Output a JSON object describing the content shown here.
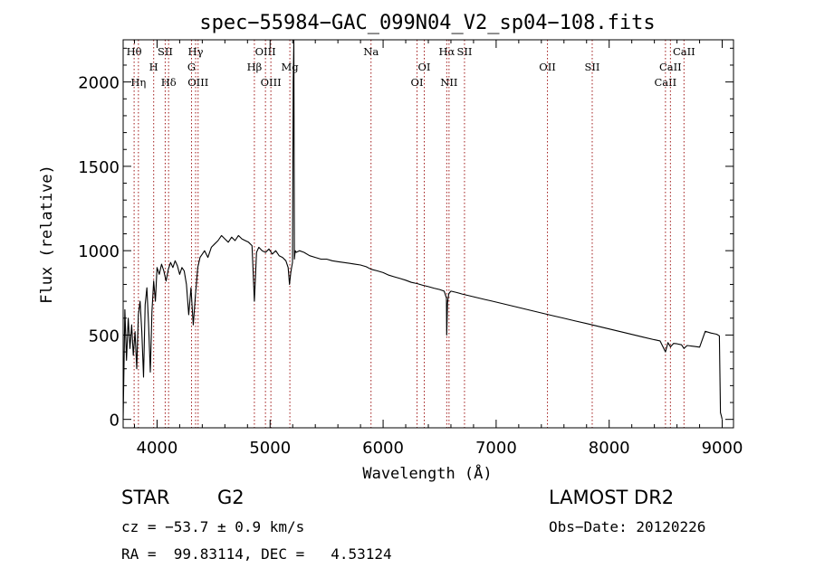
{
  "chart_data": {
    "type": "line",
    "title": "spec−55984−GAC_099N04_V2_sp04−108.fits",
    "xlabel": "Wavelength (Å)",
    "ylabel": "Flux (relative)",
    "xlim": [
      3700,
      9100
    ],
    "ylim": [
      -50,
      2250
    ],
    "x_ticks": [
      4000,
      5000,
      6000,
      7000,
      8000,
      9000
    ],
    "y_ticks": [
      0,
      500,
      1000,
      1500,
      2000
    ],
    "grid": false,
    "colors": {
      "line": "#000000",
      "spectral_line_marker": "#a01818"
    },
    "series": [
      {
        "x": [
          3700,
          3715,
          3730,
          3745,
          3760,
          3775,
          3790,
          3805,
          3820,
          3835,
          3850,
          3865,
          3880,
          3895,
          3910,
          3925,
          3940,
          3955,
          3970,
          3985,
          4000,
          4020,
          4040,
          4060,
          4080,
          4100,
          4120,
          4140,
          4160,
          4180,
          4200,
          4220,
          4240,
          4260,
          4280,
          4300,
          4320,
          4340,
          4360,
          4380,
          4400,
          4420,
          4450,
          4480,
          4510,
          4540,
          4570,
          4600,
          4630,
          4660,
          4690,
          4720,
          4750,
          4780,
          4810,
          4840,
          4861,
          4880,
          4900,
          4930,
          4960,
          4990,
          5020,
          5050,
          5080,
          5110,
          5140,
          5160,
          5172,
          5183,
          5190,
          5198,
          5205,
          5210,
          5215,
          5222,
          5230,
          5260,
          5300,
          5350,
          5400,
          5450,
          5500,
          5550,
          5600,
          5650,
          5700,
          5750,
          5800,
          5850,
          5893,
          5950,
          6000,
          6050,
          6100,
          6150,
          6200,
          6250,
          6300,
          6350,
          6400,
          6450,
          6500,
          6540,
          6560,
          6563,
          6570,
          6580,
          6600,
          6650,
          6700,
          6750,
          6800,
          6850,
          6900,
          6950,
          7000,
          7100,
          7200,
          7300,
          7400,
          7500,
          7600,
          7700,
          7800,
          7900,
          8000,
          8100,
          8200,
          8300,
          8400,
          8450,
          8498,
          8520,
          8542,
          8570,
          8600,
          8640,
          8662,
          8690,
          8750,
          8800,
          8850,
          8900,
          8950,
          8975,
          8985,
          8993,
          9000
        ],
        "y": [
          0,
          650,
          350,
          600,
          420,
          560,
          380,
          520,
          300,
          620,
          700,
          520,
          250,
          680,
          780,
          560,
          280,
          640,
          820,
          700,
          900,
          860,
          920,
          880,
          820,
          890,
          930,
          900,
          940,
          910,
          860,
          900,
          880,
          800,
          620,
          780,
          560,
          740,
          900,
          960,
          980,
          1000,
          960,
          1020,
          1040,
          1060,
          1090,
          1070,
          1050,
          1080,
          1060,
          1090,
          1070,
          1060,
          1050,
          1030,
          700,
          990,
          1020,
          1000,
          990,
          1010,
          980,
          1000,
          970,
          960,
          940,
          900,
          800,
          870,
          900,
          930,
          2000,
          2250,
          950,
          1000,
          990,
          1000,
          990,
          970,
          960,
          950,
          950,
          940,
          935,
          930,
          925,
          920,
          915,
          905,
          890,
          880,
          870,
          855,
          845,
          835,
          825,
          812,
          805,
          795,
          787,
          778,
          770,
          760,
          720,
          500,
          690,
          745,
          760,
          752,
          743,
          735,
          727,
          719,
          711,
          703,
          695,
          679,
          663,
          647,
          631,
          615,
          599,
          583,
          568,
          552,
          536,
          520,
          504,
          488,
          472,
          465,
          400,
          455,
          430,
          450,
          448,
          442,
          420,
          438,
          433,
          428,
          522,
          512,
          505,
          495,
          40,
          20,
          0
        ]
      }
    ],
    "line_markers": [
      {
        "label": "Hθ",
        "x": 3797,
        "row": 0
      },
      {
        "label": "Hη",
        "x": 3835,
        "row": 2
      },
      {
        "label": "H",
        "x": 3970,
        "row": 1
      },
      {
        "label": "SII",
        "x": 4072,
        "row": 0
      },
      {
        "label": "Hδ",
        "x": 4102,
        "row": 2
      },
      {
        "label": "Hγ",
        "x": 4341,
        "row": 0
      },
      {
        "label": "G",
        "x": 4305,
        "row": 1
      },
      {
        "label": "OIII",
        "x": 4363,
        "row": 2
      },
      {
        "label": "Hβ",
        "x": 4861,
        "row": 1
      },
      {
        "label": "OIII",
        "x": 4959,
        "row": 0
      },
      {
        "label": "OIII",
        "x": 5007,
        "row": 2
      },
      {
        "label": "Mg",
        "x": 5175,
        "row": 1
      },
      {
        "label": "Na",
        "x": 5893,
        "row": 0
      },
      {
        "label": "OI",
        "x": 6300,
        "row": 2
      },
      {
        "label": "OI",
        "x": 6364,
        "row": 1
      },
      {
        "label": "Hα",
        "x": 6563,
        "row": 0
      },
      {
        "label": "NII",
        "x": 6583,
        "row": 2
      },
      {
        "label": "SII",
        "x": 6720,
        "row": 0
      },
      {
        "label": "OII",
        "x": 7454,
        "row": 1
      },
      {
        "label": "SII",
        "x": 7850,
        "row": 1
      },
      {
        "label": "CaII",
        "x": 8498,
        "row": 2
      },
      {
        "label": "CaII",
        "x": 8542,
        "row": 1
      },
      {
        "label": "CaII",
        "x": 8662,
        "row": 0
      }
    ]
  },
  "info": {
    "object_class": "STAR",
    "subclass": "G2",
    "survey": "LAMOST DR2",
    "redshift": "cz = −53.7 ± 0.9 km/s",
    "obs_date": "Obs−Date: 20120226",
    "coords": "RA =  99.83114, DEC =   4.53124"
  }
}
